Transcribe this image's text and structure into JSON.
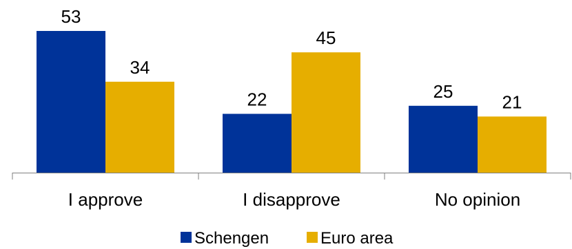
{
  "chart_data": {
    "type": "bar",
    "categories": [
      "I approve",
      "I disapprove",
      "No opinion"
    ],
    "series": [
      {
        "name": "Schengen",
        "values": [
          53,
          22,
          25
        ],
        "color": "#003399"
      },
      {
        "name": "Euro area",
        "values": [
          34,
          45,
          21
        ],
        "color": "#E6AE00"
      }
    ],
    "ylim": [
      0,
      55
    ],
    "grid": false,
    "legend": "bottom",
    "axis_color": "#7f7f7f"
  }
}
